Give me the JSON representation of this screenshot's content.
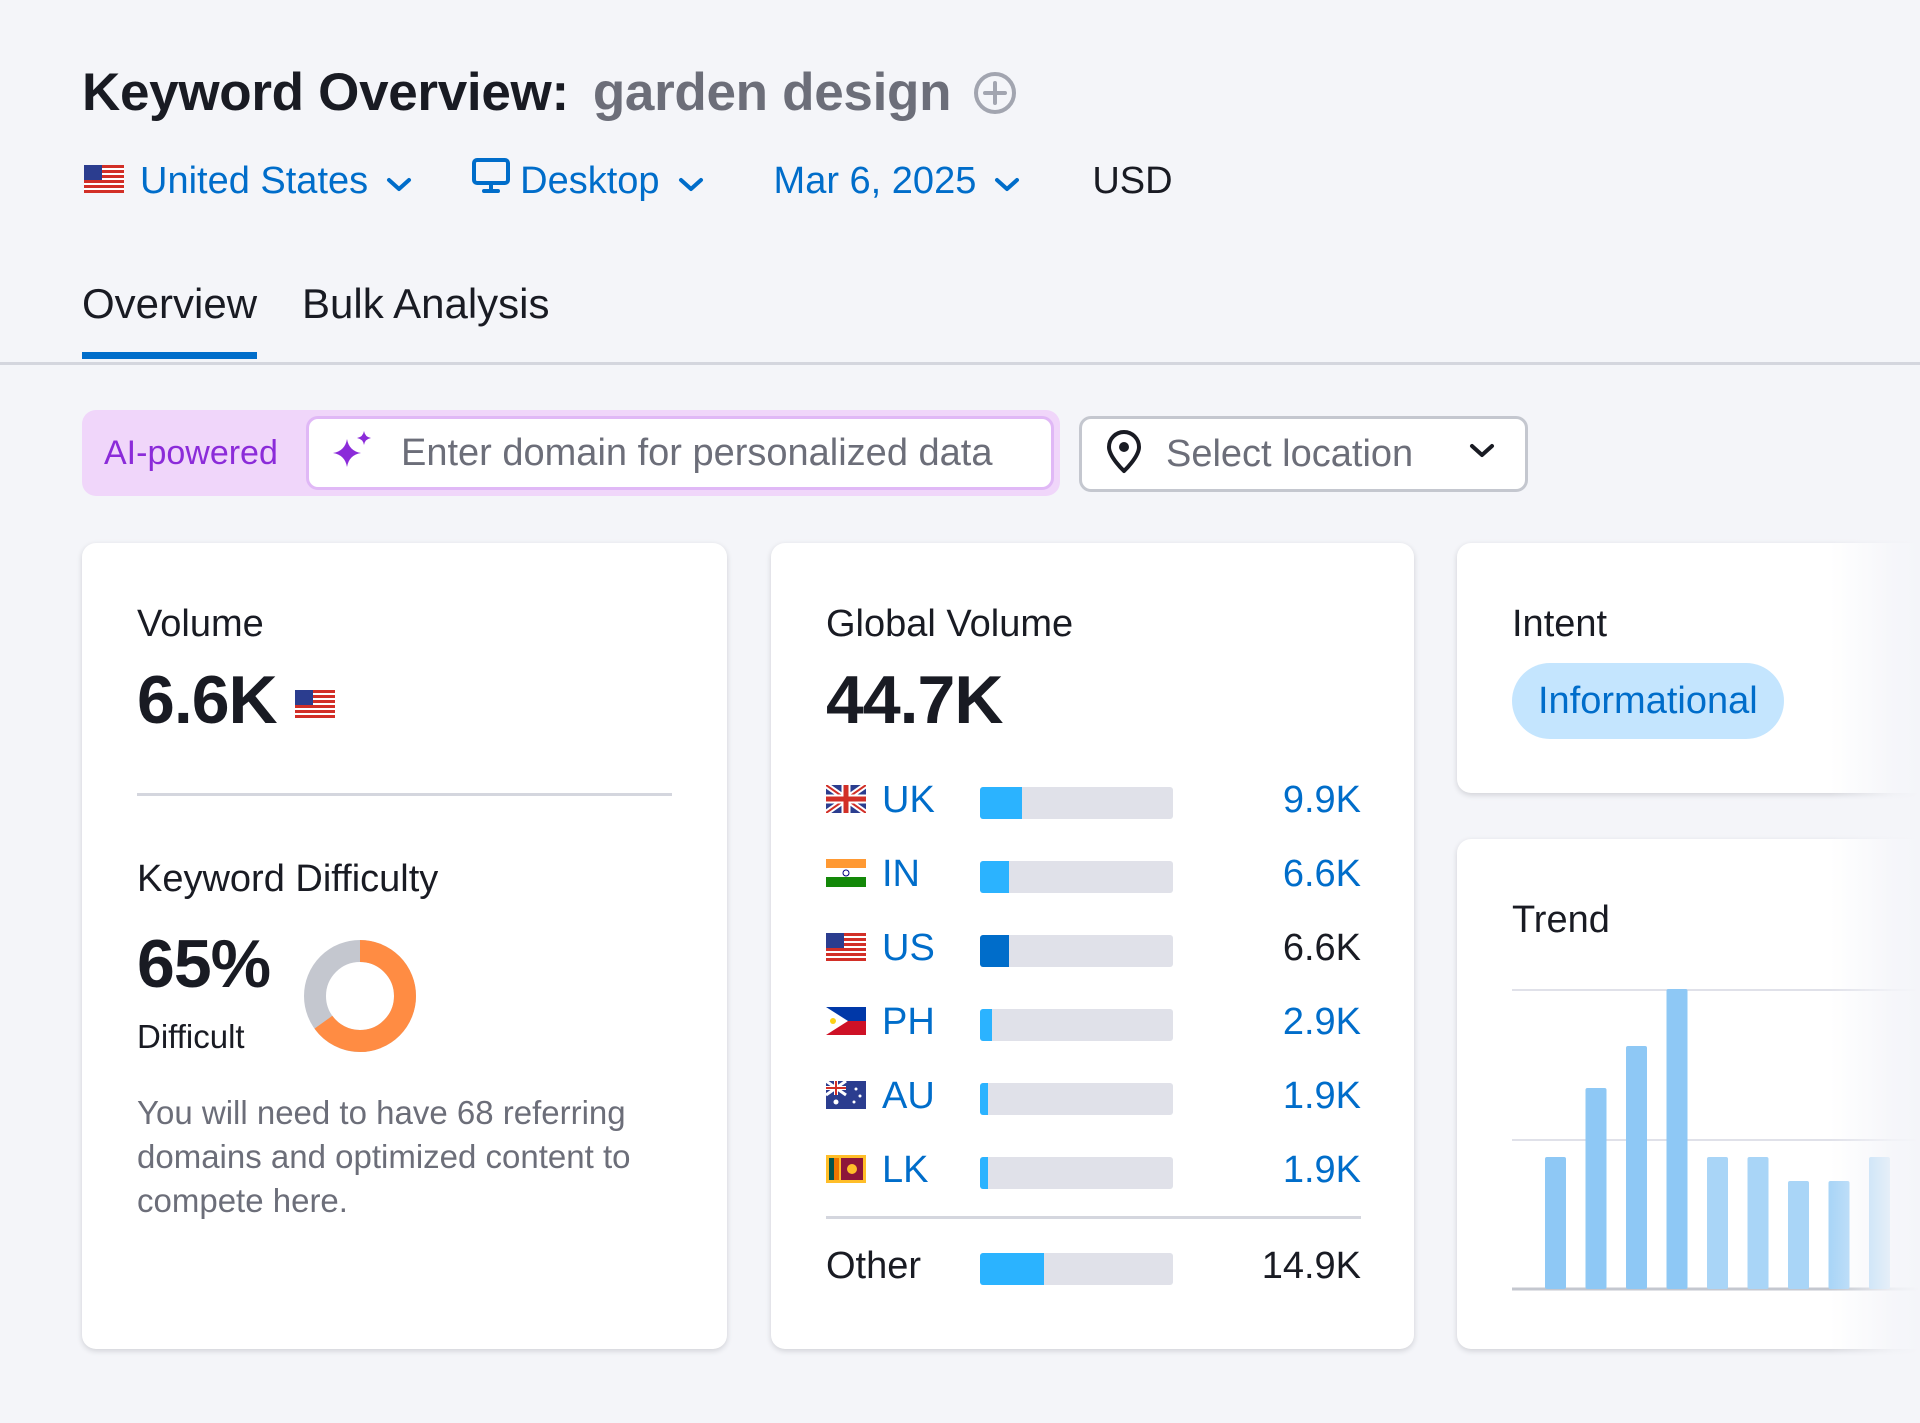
{
  "header": {
    "title": "Keyword Overview:",
    "keyword": "garden design"
  },
  "filters": {
    "country": "United States",
    "device": "Desktop",
    "date": "Mar 6, 2025",
    "currency": "USD"
  },
  "tabs": [
    {
      "label": "Overview",
      "active": true
    },
    {
      "label": "Bulk Analysis",
      "active": false
    }
  ],
  "personalize": {
    "badge": "AI-powered",
    "placeholder": "Enter domain for personalized data",
    "location_placeholder": "Select location"
  },
  "volume": {
    "label": "Volume",
    "value": "6.6K"
  },
  "keyword_difficulty": {
    "label": "Keyword Difficulty",
    "value": "65%",
    "percent": 65,
    "level": "Difficult",
    "description": "You will need to have 68 referring domains and optimized content to compete here."
  },
  "global_volume": {
    "label": "Global Volume",
    "value": "44.7K",
    "countries": [
      {
        "code": "UK",
        "value": "9.9K",
        "share": 0.22,
        "link": true
      },
      {
        "code": "IN",
        "value": "6.6K",
        "share": 0.15,
        "link": true
      },
      {
        "code": "US",
        "value": "6.6K",
        "share": 0.15,
        "link": false
      },
      {
        "code": "PH",
        "value": "2.9K",
        "share": 0.06,
        "link": true
      },
      {
        "code": "AU",
        "value": "1.9K",
        "share": 0.04,
        "link": true
      },
      {
        "code": "LK",
        "value": "1.9K",
        "share": 0.04,
        "link": true
      }
    ],
    "other": {
      "label": "Other",
      "value": "14.9K",
      "share": 0.33
    }
  },
  "intent": {
    "label": "Intent",
    "value": "Informational"
  },
  "trend": {
    "label": "Trend",
    "values": [
      0.44,
      0.67,
      0.81,
      1.0,
      0.44,
      0.44,
      0.36,
      0.36,
      0.44
    ]
  },
  "colors": {
    "accent": "#006dca",
    "bar_light": "#2bb3ff",
    "kd_orange": "#ff8c43",
    "ai_purple": "#8b2bd9"
  }
}
